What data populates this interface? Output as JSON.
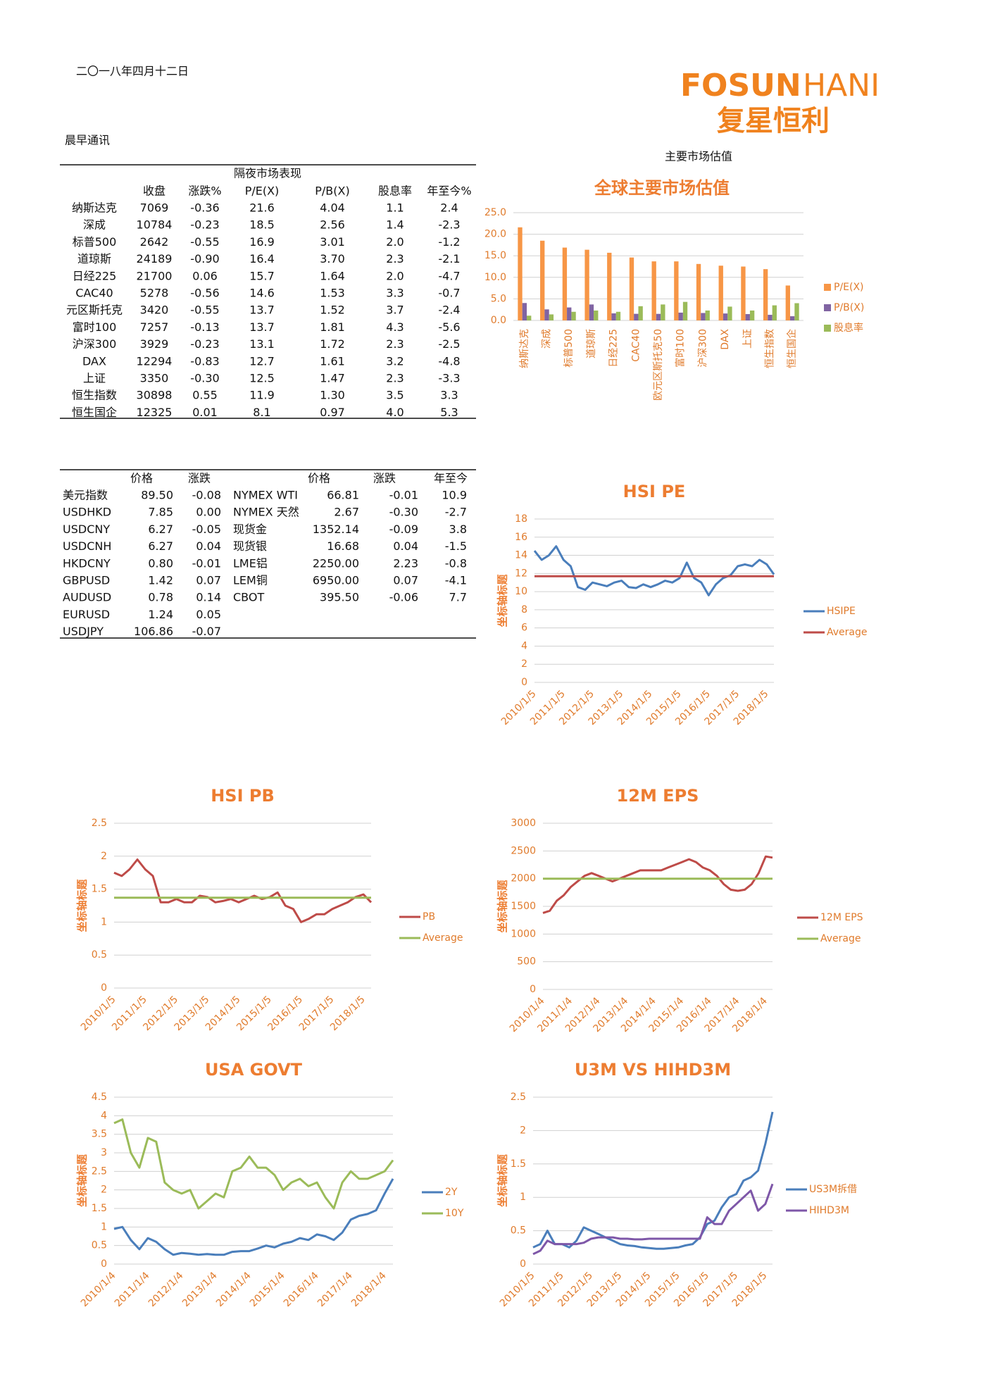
{
  "header": {
    "date": "二〇一八年四月十二日",
    "section": "晨早通讯",
    "logo_en_1": "FOSUN",
    "logo_en_2": "HANI",
    "logo_cn": "复星恒利",
    "valuation_heading": "主要市场估值"
  },
  "table1": {
    "title": "隔夜市场表现",
    "columns": [
      "收盘",
      "涨跌%",
      "P/E(X)",
      "P/B(X)",
      "股息率",
      "年至今%"
    ],
    "rows": [
      [
        "纳斯达克",
        "7069",
        "-0.36",
        "21.6",
        "4.04",
        "1.1",
        "2.4"
      ],
      [
        "深成",
        "10784",
        "-0.23",
        "18.5",
        "2.56",
        "1.4",
        "-2.3"
      ],
      [
        "标普500",
        "2642",
        "-0.55",
        "16.9",
        "3.01",
        "2.0",
        "-1.2"
      ],
      [
        "道琼斯",
        "24189",
        "-0.90",
        "16.4",
        "3.70",
        "2.3",
        "-2.1"
      ],
      [
        "日经225",
        "21700",
        "0.06",
        "15.7",
        "1.64",
        "2.0",
        "-4.7"
      ],
      [
        "CAC40",
        "5278",
        "-0.56",
        "14.6",
        "1.53",
        "3.3",
        "-0.7"
      ],
      [
        "元区斯托克",
        "3420",
        "-0.55",
        "13.7",
        "1.52",
        "3.7",
        "-2.4"
      ],
      [
        "富时100",
        "7257",
        "-0.13",
        "13.7",
        "1.81",
        "4.3",
        "-5.6"
      ],
      [
        "沪深300",
        "3929",
        "-0.23",
        "13.1",
        "1.72",
        "2.3",
        "-2.5"
      ],
      [
        "DAX",
        "12294",
        "-0.83",
        "12.7",
        "1.61",
        "3.2",
        "-4.8"
      ],
      [
        "上证",
        "3350",
        "-0.30",
        "12.5",
        "1.47",
        "2.3",
        "-3.3"
      ],
      [
        "恒生指数",
        "30898",
        "0.55",
        "11.9",
        "1.30",
        "3.5",
        "3.3"
      ],
      [
        "恒生国企",
        "12325",
        "0.01",
        "8.1",
        "0.97",
        "4.0",
        "5.3"
      ]
    ]
  },
  "table2": {
    "columns": [
      "价格",
      "涨跌",
      "价格",
      "涨跌",
      "年至今"
    ],
    "rows": [
      [
        "美元指数",
        "89.50",
        "-0.08",
        "NYMEX WTI",
        "66.81",
        "-0.01",
        "10.9"
      ],
      [
        "USDHKD",
        "7.85",
        "0.00",
        "NYMEX 天然",
        "2.67",
        "-0.30",
        "-2.7"
      ],
      [
        "USDCNY",
        "6.27",
        "-0.05",
        "现货金",
        "1352.14",
        "-0.09",
        "3.8"
      ],
      [
        "USDCNH",
        "6.27",
        "0.04",
        "现货银",
        "16.68",
        "0.04",
        "-1.5"
      ],
      [
        "HKDCNY",
        "0.80",
        "-0.01",
        "LME铝",
        "2250.00",
        "2.23",
        "-0.8"
      ],
      [
        "GBPUSD",
        "1.42",
        "0.07",
        "LEM铜",
        "6950.00",
        "0.07",
        "-4.1"
      ],
      [
        "AUDUSD",
        "0.78",
        "0.14",
        "CBOT",
        "395.50",
        "-0.06",
        "7.7"
      ],
      [
        "EURUSD",
        "1.24",
        "0.05"
      ],
      [
        "USDJPY",
        "106.86",
        "-0.07"
      ]
    ]
  },
  "chart_data": [
    {
      "type": "bar",
      "title": "全球主要市场估值",
      "categories": [
        "纳斯达克",
        "深成",
        "标普500",
        "道琼斯",
        "日经225",
        "CAC40",
        "欧元区斯托克50",
        "富时100",
        "沪深300",
        "DAX",
        "上证",
        "恒生指数",
        "恒生国企"
      ],
      "series": [
        {
          "name": "P/E(X)",
          "color": "#f79646",
          "values": [
            21.6,
            18.5,
            16.9,
            16.4,
            15.7,
            14.6,
            13.7,
            13.7,
            13.1,
            12.7,
            12.5,
            11.9,
            8.1
          ]
        },
        {
          "name": "P/B(X)",
          "color": "#8064a2",
          "values": [
            4.04,
            2.56,
            3.01,
            3.7,
            1.64,
            1.53,
            1.52,
            1.81,
            1.72,
            1.61,
            1.47,
            1.3,
            0.97
          ]
        },
        {
          "name": "股息率",
          "color": "#9bbb59",
          "values": [
            1.1,
            1.4,
            2.0,
            2.3,
            2.0,
            3.3,
            3.7,
            4.3,
            2.3,
            3.2,
            2.3,
            3.5,
            4.0
          ]
        }
      ],
      "ylim": [
        0,
        25
      ],
      "yticks": [
        {
          "value": 0,
          "label": "0.0"
        },
        {
          "value": 5,
          "label": "5.0"
        },
        {
          "value": 10,
          "label": "10.0"
        },
        {
          "value": 15,
          "label": "15.0"
        },
        {
          "value": 20,
          "label": "20.0"
        },
        {
          "value": 25,
          "label": "25.0"
        }
      ],
      "grid": true,
      "legend": "right"
    },
    {
      "type": "line",
      "title": "HSI PE",
      "y_label": "坐标轴标题",
      "x": [
        "2010/1/5",
        "2010/4/5",
        "2010/7/5",
        "2010/10/5",
        "2011/1/5",
        "2011/4/5",
        "2011/7/5",
        "2011/10/5",
        "2012/1/5",
        "2012/4/5",
        "2012/7/5",
        "2012/10/5",
        "2013/1/5",
        "2013/4/5",
        "2013/7/5",
        "2013/10/5",
        "2014/1/5",
        "2014/4/5",
        "2014/7/5",
        "2014/10/5",
        "2015/1/5",
        "2015/4/5",
        "2015/7/5",
        "2015/10/5",
        "2016/1/5",
        "2016/4/5",
        "2016/7/5",
        "2016/10/5",
        "2017/1/5",
        "2017/4/5",
        "2017/7/5",
        "2017/10/5",
        "2018/1/5",
        "2018/4/5"
      ],
      "series": [
        {
          "name": "HSIPE",
          "color": "#4a7ebb",
          "values": [
            14.5,
            13.5,
            14.0,
            15.0,
            13.5,
            12.8,
            10.5,
            10.2,
            11.0,
            10.8,
            10.6,
            11.0,
            11.2,
            10.5,
            10.4,
            10.8,
            10.5,
            10.8,
            11.2,
            11.0,
            11.5,
            13.2,
            11.5,
            11.0,
            9.6,
            10.8,
            11.5,
            11.8,
            12.8,
            13.0,
            12.8,
            13.5,
            13.0,
            11.9
          ]
        },
        {
          "name": "Average",
          "color": "#be4b48",
          "values": [
            11.7,
            11.7,
            11.7,
            11.7,
            11.7,
            11.7,
            11.7,
            11.7,
            11.7,
            11.7,
            11.7,
            11.7,
            11.7,
            11.7,
            11.7,
            11.7,
            11.7,
            11.7,
            11.7,
            11.7,
            11.7,
            11.7,
            11.7,
            11.7,
            11.7,
            11.7,
            11.7,
            11.7,
            11.7,
            11.7,
            11.7,
            11.7,
            11.7,
            11.7
          ]
        }
      ],
      "xticks": [
        "2010/1/5",
        "2011/1/5",
        "2012/1/5",
        "2013/1/5",
        "2014/1/5",
        "2015/1/5",
        "2016/1/5",
        "2017/1/5",
        "2018/1/5"
      ],
      "ylim": [
        0,
        18
      ],
      "yticks": [
        0,
        2,
        4,
        6,
        8,
        10,
        12,
        14,
        16,
        18
      ],
      "grid": true,
      "legend": "right"
    },
    {
      "type": "line",
      "title": "HSI PB",
      "y_label": "坐标轴标题",
      "x": [
        "2010/1/5",
        "2010/4/5",
        "2010/7/5",
        "2010/10/5",
        "2011/1/5",
        "2011/4/5",
        "2011/7/5",
        "2011/10/5",
        "2012/1/5",
        "2012/4/5",
        "2012/7/5",
        "2012/10/5",
        "2013/1/5",
        "2013/4/5",
        "2013/7/5",
        "2013/10/5",
        "2014/1/5",
        "2014/4/5",
        "2014/7/5",
        "2014/10/5",
        "2015/1/5",
        "2015/4/5",
        "2015/7/5",
        "2015/10/5",
        "2016/1/5",
        "2016/4/5",
        "2016/7/5",
        "2016/10/5",
        "2017/1/5",
        "2017/4/5",
        "2017/7/5",
        "2017/10/5",
        "2018/1/5",
        "2018/4/5"
      ],
      "series": [
        {
          "name": "PB",
          "color": "#be4b48",
          "values": [
            1.75,
            1.7,
            1.8,
            1.95,
            1.8,
            1.7,
            1.3,
            1.3,
            1.35,
            1.3,
            1.3,
            1.4,
            1.38,
            1.3,
            1.32,
            1.35,
            1.3,
            1.35,
            1.4,
            1.35,
            1.38,
            1.45,
            1.25,
            1.2,
            1.0,
            1.05,
            1.12,
            1.12,
            1.2,
            1.25,
            1.3,
            1.38,
            1.42,
            1.3
          ]
        },
        {
          "name": "Average",
          "color": "#9bbb59",
          "values": [
            1.37,
            1.37,
            1.37,
            1.37,
            1.37,
            1.37,
            1.37,
            1.37,
            1.37,
            1.37,
            1.37,
            1.37,
            1.37,
            1.37,
            1.37,
            1.37,
            1.37,
            1.37,
            1.37,
            1.37,
            1.37,
            1.37,
            1.37,
            1.37,
            1.37,
            1.37,
            1.37,
            1.37,
            1.37,
            1.37,
            1.37,
            1.37,
            1.37,
            1.37
          ]
        }
      ],
      "xticks": [
        "2010/1/5",
        "2011/1/5",
        "2012/1/5",
        "2013/1/5",
        "2014/1/5",
        "2015/1/5",
        "2016/1/5",
        "2017/1/5",
        "2018/1/5"
      ],
      "ylim": [
        0,
        2.5
      ],
      "yticks": [
        0,
        0.5,
        1,
        1.5,
        2,
        2.5
      ],
      "grid": true,
      "legend": "right"
    },
    {
      "type": "line",
      "title": "12M EPS",
      "y_label": "坐标轴标题",
      "x": [
        "2010/1/4",
        "2010/4/4",
        "2010/7/4",
        "2010/10/4",
        "2011/1/4",
        "2011/4/4",
        "2011/7/4",
        "2011/10/4",
        "2012/1/4",
        "2012/4/4",
        "2012/7/4",
        "2012/10/4",
        "2013/1/4",
        "2013/4/4",
        "2013/7/4",
        "2013/10/4",
        "2014/1/4",
        "2014/4/4",
        "2014/7/4",
        "2014/10/4",
        "2015/1/4",
        "2015/4/4",
        "2015/7/4",
        "2015/10/4",
        "2016/1/4",
        "2016/4/4",
        "2016/7/4",
        "2016/10/4",
        "2017/1/4",
        "2017/4/4",
        "2017/7/4",
        "2017/10/4",
        "2018/1/4",
        "2018/4/4"
      ],
      "series": [
        {
          "name": "12M EPS",
          "color": "#be4b48",
          "values": [
            1380,
            1420,
            1600,
            1700,
            1850,
            1950,
            2050,
            2100,
            2050,
            2000,
            1950,
            2000,
            2050,
            2100,
            2150,
            2150,
            2150,
            2150,
            2200,
            2250,
            2300,
            2350,
            2300,
            2200,
            2150,
            2050,
            1900,
            1800,
            1780,
            1800,
            1900,
            2100,
            2400,
            2380
          ]
        },
        {
          "name": "Average",
          "color": "#9bbb59",
          "values": [
            2000,
            2000,
            2000,
            2000,
            2000,
            2000,
            2000,
            2000,
            2000,
            2000,
            2000,
            2000,
            2000,
            2000,
            2000,
            2000,
            2000,
            2000,
            2000,
            2000,
            2000,
            2000,
            2000,
            2000,
            2000,
            2000,
            2000,
            2000,
            2000,
            2000,
            2000,
            2000,
            2000,
            2000
          ]
        }
      ],
      "xticks": [
        "2010/1/4",
        "2011/1/4",
        "2012/1/4",
        "2013/1/4",
        "2014/1/4",
        "2015/1/4",
        "2016/1/4",
        "2017/1/4",
        "2018/1/4"
      ],
      "ylim": [
        0,
        3000
      ],
      "yticks": [
        0,
        500,
        1000,
        1500,
        2000,
        2500,
        3000
      ],
      "grid": true,
      "legend": "right"
    },
    {
      "type": "line",
      "title": "USA GOVT",
      "y_label": "坐标轴标题",
      "x": [
        "2010/1/4",
        "2010/4/4",
        "2010/7/4",
        "2010/10/4",
        "2011/1/4",
        "2011/4/4",
        "2011/7/4",
        "2011/10/4",
        "2012/1/4",
        "2012/4/4",
        "2012/7/4",
        "2012/10/4",
        "2013/1/4",
        "2013/4/4",
        "2013/7/4",
        "2013/10/4",
        "2014/1/4",
        "2014/4/4",
        "2014/7/4",
        "2014/10/4",
        "2015/1/4",
        "2015/4/4",
        "2015/7/4",
        "2015/10/4",
        "2016/1/4",
        "2016/4/4",
        "2016/7/4",
        "2016/10/4",
        "2017/1/4",
        "2017/4/4",
        "2017/7/4",
        "2017/10/4",
        "2018/1/4",
        "2018/4/4"
      ],
      "series": [
        {
          "name": "2Y",
          "color": "#4a7ebb",
          "values": [
            0.95,
            1.0,
            0.65,
            0.4,
            0.7,
            0.6,
            0.4,
            0.25,
            0.3,
            0.28,
            0.25,
            0.27,
            0.25,
            0.25,
            0.33,
            0.35,
            0.35,
            0.42,
            0.5,
            0.45,
            0.55,
            0.6,
            0.7,
            0.65,
            0.8,
            0.75,
            0.65,
            0.85,
            1.2,
            1.3,
            1.35,
            1.45,
            1.9,
            2.3
          ]
        },
        {
          "name": "10Y",
          "color": "#9bbb59",
          "values": [
            3.8,
            3.9,
            3.0,
            2.6,
            3.4,
            3.3,
            2.2,
            2.0,
            1.9,
            2.0,
            1.5,
            1.7,
            1.9,
            1.8,
            2.5,
            2.6,
            2.9,
            2.6,
            2.6,
            2.4,
            2.0,
            2.2,
            2.3,
            2.1,
            2.2,
            1.8,
            1.5,
            2.2,
            2.5,
            2.3,
            2.3,
            2.4,
            2.5,
            2.8
          ]
        }
      ],
      "xticks": [
        "2010/1/4",
        "2011/1/4",
        "2012/1/4",
        "2013/1/4",
        "2014/1/4",
        "2015/1/4",
        "2016/1/4",
        "2017/1/4",
        "2018/1/4"
      ],
      "ylim": [
        0,
        4.5
      ],
      "yticks": [
        0,
        0.5,
        1,
        1.5,
        2,
        2.5,
        3,
        3.5,
        4,
        4.5
      ],
      "grid": true,
      "legend": "right"
    },
    {
      "type": "line",
      "title": "U3M VS HIHD3M",
      "y_label": "坐标轴标题",
      "x": [
        "2010/1/5",
        "2010/4/5",
        "2010/7/5",
        "2010/10/5",
        "2011/1/5",
        "2011/4/5",
        "2011/7/5",
        "2011/10/5",
        "2012/1/5",
        "2012/4/5",
        "2012/7/5",
        "2012/10/5",
        "2013/1/5",
        "2013/4/5",
        "2013/7/5",
        "2013/10/5",
        "2014/1/5",
        "2014/4/5",
        "2014/7/5",
        "2014/10/5",
        "2015/1/5",
        "2015/4/5",
        "2015/7/5",
        "2015/10/5",
        "2016/1/5",
        "2016/4/5",
        "2016/7/5",
        "2016/10/5",
        "2017/1/5",
        "2017/4/5",
        "2017/7/5",
        "2017/10/5",
        "2018/1/5",
        "2018/4/5"
      ],
      "series": [
        {
          "name": "US3M拆借",
          "color": "#4a7ebb",
          "values": [
            0.25,
            0.3,
            0.5,
            0.3,
            0.3,
            0.25,
            0.35,
            0.55,
            0.5,
            0.45,
            0.4,
            0.35,
            0.3,
            0.28,
            0.27,
            0.25,
            0.24,
            0.23,
            0.23,
            0.24,
            0.25,
            0.28,
            0.3,
            0.4,
            0.6,
            0.65,
            0.85,
            1.0,
            1.05,
            1.25,
            1.3,
            1.4,
            1.8,
            2.28
          ]
        },
        {
          "name": "HIHD3M",
          "color": "#7e57a8",
          "values": [
            0.15,
            0.2,
            0.35,
            0.3,
            0.3,
            0.3,
            0.3,
            0.32,
            0.38,
            0.4,
            0.4,
            0.4,
            0.38,
            0.38,
            0.37,
            0.37,
            0.38,
            0.38,
            0.38,
            0.38,
            0.38,
            0.38,
            0.38,
            0.38,
            0.7,
            0.6,
            0.6,
            0.8,
            0.9,
            1.0,
            1.1,
            0.8,
            0.9,
            1.2
          ]
        }
      ],
      "xticks": [
        "2010/1/5",
        "2011/1/5",
        "2012/1/5",
        "2013/1/5",
        "2014/1/5",
        "2015/1/5",
        "2016/1/5",
        "2017/1/5",
        "2018/1/5"
      ],
      "ylim": [
        0,
        2.5
      ],
      "yticks": [
        0,
        0.5,
        1,
        1.5,
        2,
        2.5
      ],
      "grid": true,
      "legend": "right"
    }
  ]
}
